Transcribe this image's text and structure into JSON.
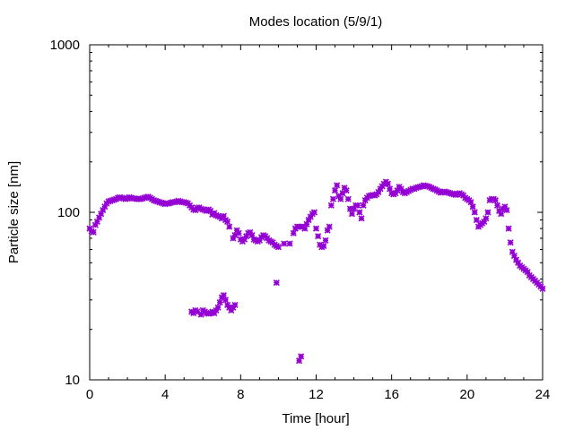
{
  "chart_data": {
    "type": "scatter",
    "title": "Modes location (5/9/1)",
    "xlabel": "Time [hour]",
    "ylabel": "Particle size [nm]",
    "xlim": [
      0,
      24
    ],
    "ylim": [
      10,
      1000
    ],
    "yscale": "log",
    "grid": false,
    "xticks": [
      "0",
      "4",
      "8",
      "12",
      "16",
      "20",
      "24"
    ],
    "yticks": [
      "10",
      "100",
      "1000"
    ],
    "marker_color": "#9400d3",
    "series": [
      {
        "points": [
          [
            0.0,
            80
          ],
          [
            0.1,
            77
          ],
          [
            0.2,
            76
          ],
          [
            0.3,
            84
          ],
          [
            0.4,
            88
          ],
          [
            0.5,
            93
          ],
          [
            0.6,
            98
          ],
          [
            0.7,
            103
          ],
          [
            0.8,
            108
          ],
          [
            0.9,
            113
          ],
          [
            1.0,
            116
          ],
          [
            1.1,
            117
          ],
          [
            1.2,
            118
          ],
          [
            1.3,
            119
          ],
          [
            1.4,
            120
          ],
          [
            1.5,
            122
          ],
          [
            1.6,
            123
          ],
          [
            1.7,
            122
          ],
          [
            1.8,
            121
          ],
          [
            1.9,
            120
          ],
          [
            2.0,
            121
          ],
          [
            2.1,
            123
          ],
          [
            2.2,
            122
          ],
          [
            2.3,
            121
          ],
          [
            2.4,
            121
          ],
          [
            2.5,
            120
          ],
          [
            2.6,
            120
          ],
          [
            2.7,
            120
          ],
          [
            2.8,
            121
          ],
          [
            2.9,
            122
          ],
          [
            3.0,
            123
          ],
          [
            3.1,
            124
          ],
          [
            3.2,
            122
          ],
          [
            3.3,
            120
          ],
          [
            3.4,
            118
          ],
          [
            3.5,
            117
          ],
          [
            3.6,
            116
          ],
          [
            3.7,
            115
          ],
          [
            3.8,
            114
          ],
          [
            3.9,
            113
          ],
          [
            4.0,
            112
          ],
          [
            4.1,
            113
          ],
          [
            4.2,
            113
          ],
          [
            4.3,
            114
          ],
          [
            4.4,
            115
          ],
          [
            4.5,
            115
          ],
          [
            4.6,
            116
          ],
          [
            4.7,
            117
          ],
          [
            4.8,
            116
          ],
          [
            4.9,
            115
          ],
          [
            5.0,
            115
          ],
          [
            5.1,
            114
          ],
          [
            5.2,
            113
          ],
          [
            5.3,
            110
          ],
          [
            5.4,
            107
          ],
          [
            5.5,
            104
          ],
          [
            5.6,
            103
          ],
          [
            5.7,
            106
          ],
          [
            5.8,
            107
          ],
          [
            5.9,
            105
          ],
          [
            6.0,
            104
          ],
          [
            6.1,
            103
          ],
          [
            6.2,
            102
          ],
          [
            6.3,
            104
          ],
          [
            6.4,
            102
          ],
          [
            6.5,
            97
          ],
          [
            6.6,
            99
          ],
          [
            6.7,
            96
          ],
          [
            6.8,
            95
          ],
          [
            6.9,
            94
          ],
          [
            7.0,
            92
          ],
          [
            7.1,
            95
          ],
          [
            7.2,
            90
          ],
          [
            7.3,
            88
          ],
          [
            7.4,
            82
          ],
          [
            7.6,
            70
          ],
          [
            7.7,
            73
          ],
          [
            7.8,
            78
          ],
          [
            7.9,
            75
          ],
          [
            8.0,
            69
          ],
          [
            8.1,
            67
          ],
          [
            8.2,
            69
          ],
          [
            8.3,
            72
          ],
          [
            8.4,
            75
          ],
          [
            8.5,
            76
          ],
          [
            8.6,
            73
          ],
          [
            8.7,
            69
          ],
          [
            8.8,
            68
          ],
          [
            8.9,
            67
          ],
          [
            9.0,
            68
          ],
          [
            9.1,
            71
          ],
          [
            9.2,
            73
          ],
          [
            9.3,
            72
          ],
          [
            9.4,
            70
          ],
          [
            9.5,
            68
          ],
          [
            9.6,
            67
          ],
          [
            9.7,
            66
          ],
          [
            9.8,
            64
          ],
          [
            9.9,
            63
          ],
          [
            10.0,
            62
          ],
          [
            10.3,
            65
          ],
          [
            10.6,
            65
          ],
          [
            10.8,
            75
          ],
          [
            10.9,
            80
          ],
          [
            11.0,
            82
          ],
          [
            11.1,
            82
          ],
          [
            11.2,
            82
          ],
          [
            11.3,
            82
          ],
          [
            11.4,
            80
          ],
          [
            11.5,
            85
          ],
          [
            11.6,
            90
          ],
          [
            11.7,
            94
          ],
          [
            11.8,
            98
          ],
          [
            11.9,
            100
          ],
          [
            12.0,
            80
          ],
          [
            12.1,
            72
          ],
          [
            12.2,
            64
          ],
          [
            12.3,
            62
          ],
          [
            12.4,
            63
          ],
          [
            12.5,
            68
          ],
          [
            12.6,
            78
          ],
          [
            12.7,
            82
          ],
          [
            12.8,
            110
          ],
          [
            12.9,
            120
          ],
          [
            13.0,
            135
          ],
          [
            13.1,
            145
          ],
          [
            13.2,
            125
          ],
          [
            13.3,
            120
          ],
          [
            13.4,
            130
          ],
          [
            13.5,
            140
          ],
          [
            13.6,
            135
          ],
          [
            13.7,
            120
          ],
          [
            13.8,
            105
          ],
          [
            13.9,
            98
          ],
          [
            14.0,
            105
          ],
          [
            14.1,
            110
          ],
          [
            14.2,
            110
          ],
          [
            14.3,
            100
          ],
          [
            14.4,
            92
          ],
          [
            14.5,
            110
          ],
          [
            14.6,
            118
          ],
          [
            14.7,
            122
          ],
          [
            14.8,
            125
          ],
          [
            14.9,
            126
          ],
          [
            15.0,
            127
          ],
          [
            15.1,
            126
          ],
          [
            15.2,
            128
          ],
          [
            15.3,
            132
          ],
          [
            15.4,
            138
          ],
          [
            15.5,
            143
          ],
          [
            15.6,
            148
          ],
          [
            15.7,
            152
          ],
          [
            15.8,
            148
          ],
          [
            15.9,
            138
          ],
          [
            16.0,
            130
          ],
          [
            16.1,
            128
          ],
          [
            16.2,
            130
          ],
          [
            16.3,
            135
          ],
          [
            16.4,
            142
          ],
          [
            16.5,
            138
          ],
          [
            16.6,
            132
          ],
          [
            16.7,
            130
          ],
          [
            16.8,
            132
          ],
          [
            16.9,
            134
          ],
          [
            17.0,
            136
          ],
          [
            17.1,
            138
          ],
          [
            17.2,
            138
          ],
          [
            17.3,
            140
          ],
          [
            17.4,
            141
          ],
          [
            17.5,
            142
          ],
          [
            17.6,
            143
          ],
          [
            17.7,
            145
          ],
          [
            17.8,
            144
          ],
          [
            17.9,
            143
          ],
          [
            18.0,
            142
          ],
          [
            18.1,
            140
          ],
          [
            18.2,
            138
          ],
          [
            18.3,
            137
          ],
          [
            18.4,
            135
          ],
          [
            18.5,
            133
          ],
          [
            18.6,
            131
          ],
          [
            18.7,
            132
          ],
          [
            18.8,
            133
          ],
          [
            18.9,
            132
          ],
          [
            19.0,
            131
          ],
          [
            19.1,
            130
          ],
          [
            19.2,
            129
          ],
          [
            19.3,
            128
          ],
          [
            19.4,
            127
          ],
          [
            19.5,
            129
          ],
          [
            19.6,
            130
          ],
          [
            19.7,
            128
          ],
          [
            19.8,
            126
          ],
          [
            19.9,
            122
          ],
          [
            20.0,
            120
          ],
          [
            20.1,
            118
          ],
          [
            20.2,
            115
          ],
          [
            20.3,
            108
          ],
          [
            20.4,
            100
          ],
          [
            20.5,
            90
          ],
          [
            20.6,
            82
          ],
          [
            20.7,
            84
          ],
          [
            20.8,
            86
          ],
          [
            20.9,
            88
          ],
          [
            21.0,
            92
          ],
          [
            21.1,
            100
          ],
          [
            21.2,
            118
          ],
          [
            21.3,
            120
          ],
          [
            21.4,
            120
          ],
          [
            21.5,
            118
          ],
          [
            21.6,
            110
          ],
          [
            21.7,
            102
          ],
          [
            21.8,
            98
          ],
          [
            21.9,
            105
          ],
          [
            22.0,
            108
          ],
          [
            22.1,
            103
          ],
          [
            22.2,
            80
          ],
          [
            22.3,
            66
          ],
          [
            22.4,
            58
          ],
          [
            22.5,
            55
          ],
          [
            22.6,
            52
          ],
          [
            22.7,
            50
          ],
          [
            22.8,
            48
          ],
          [
            22.9,
            47
          ],
          [
            23.0,
            46
          ],
          [
            23.1,
            45
          ],
          [
            23.2,
            44
          ],
          [
            23.3,
            42
          ],
          [
            23.4,
            41
          ],
          [
            23.5,
            40
          ],
          [
            23.6,
            39
          ],
          [
            23.7,
            38
          ],
          [
            23.8,
            37
          ],
          [
            23.9,
            36
          ],
          [
            24.0,
            35
          ],
          [
            5.4,
            25.5
          ],
          [
            5.5,
            25
          ],
          [
            5.6,
            26
          ],
          [
            5.7,
            25.5
          ],
          [
            5.9,
            24.5
          ],
          [
            6.0,
            26
          ],
          [
            6.1,
            25.5
          ],
          [
            6.2,
            25
          ],
          [
            6.3,
            24.8
          ],
          [
            6.4,
            25
          ],
          [
            6.5,
            25.5
          ],
          [
            6.6,
            25
          ],
          [
            6.7,
            26
          ],
          [
            6.8,
            27
          ],
          [
            6.9,
            29
          ],
          [
            7.0,
            31
          ],
          [
            7.1,
            32
          ],
          [
            7.2,
            30
          ],
          [
            7.3,
            28
          ],
          [
            7.4,
            27
          ],
          [
            7.5,
            26
          ],
          [
            7.6,
            27
          ],
          [
            7.7,
            28
          ],
          [
            9.9,
            38
          ],
          [
            11.1,
            13
          ],
          [
            11.2,
            13.8
          ]
        ]
      }
    ]
  }
}
